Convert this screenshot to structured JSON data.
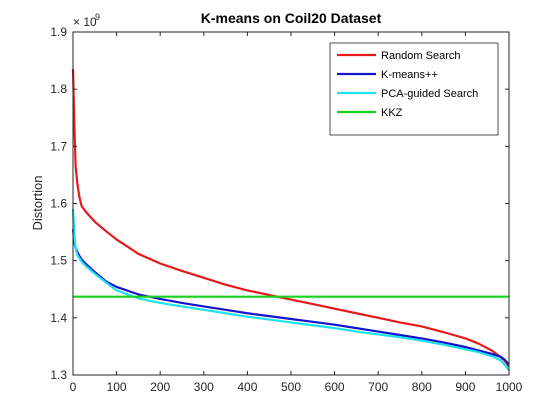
{
  "chart_data": {
    "type": "line",
    "title": "K-means on Coil20 Dataset",
    "xlabel": "",
    "ylabel": "Distortion",
    "xlim": [
      0,
      1000
    ],
    "ylim": [
      1.3,
      1.9
    ],
    "xticks": [
      "0",
      "100",
      "200",
      "300",
      "400",
      "500",
      "600",
      "700",
      "800",
      "900",
      "1000"
    ],
    "yticks": [
      "1.3",
      "1.4",
      "1.5",
      "1.6",
      "1.7",
      "1.8",
      "1.9"
    ],
    "y_exponent_base": "× 10",
    "y_exponent_power": "9",
    "grid": false,
    "legend_position": "top-right",
    "series": [
      {
        "name": "Random Search",
        "color": "#e51a1a",
        "x": [
          0,
          3,
          6,
          10,
          15,
          20,
          30,
          50,
          75,
          100,
          150,
          200,
          250,
          300,
          350,
          400,
          450,
          500,
          550,
          600,
          650,
          700,
          750,
          800,
          850,
          900,
          930,
          960,
          980,
          990,
          1000
        ],
        "y": [
          1.835,
          1.74,
          1.665,
          1.635,
          1.61,
          1.595,
          1.585,
          1.568,
          1.552,
          1.537,
          1.512,
          1.495,
          1.482,
          1.47,
          1.458,
          1.448,
          1.44,
          1.432,
          1.424,
          1.416,
          1.408,
          1.4,
          1.392,
          1.385,
          1.375,
          1.364,
          1.355,
          1.343,
          1.332,
          1.325,
          1.315
        ]
      },
      {
        "name": "K-means++",
        "color": "#1414c8",
        "x": [
          0,
          3,
          6,
          10,
          15,
          20,
          30,
          50,
          75,
          100,
          150,
          200,
          250,
          300,
          350,
          400,
          450,
          500,
          550,
          600,
          650,
          700,
          750,
          800,
          850,
          900,
          930,
          960,
          980,
          990,
          1000
        ],
        "y": [
          1.555,
          1.532,
          1.522,
          1.515,
          1.508,
          1.502,
          1.494,
          1.48,
          1.464,
          1.454,
          1.441,
          1.433,
          1.426,
          1.42,
          1.414,
          1.408,
          1.403,
          1.398,
          1.393,
          1.388,
          1.382,
          1.376,
          1.37,
          1.364,
          1.357,
          1.349,
          1.343,
          1.337,
          1.332,
          1.327,
          1.318
        ]
      },
      {
        "name": "PCA-guided Search",
        "color": "#1ee1f0",
        "x": [
          0,
          3,
          6,
          10,
          15,
          20,
          30,
          50,
          75,
          100,
          150,
          200,
          250,
          300,
          350,
          400,
          450,
          500,
          550,
          600,
          650,
          700,
          750,
          800,
          850,
          900,
          930,
          960,
          980,
          990,
          1000
        ],
        "y": [
          1.59,
          1.545,
          1.522,
          1.51,
          1.504,
          1.498,
          1.49,
          1.477,
          1.462,
          1.448,
          1.434,
          1.426,
          1.42,
          1.414,
          1.408,
          1.402,
          1.397,
          1.392,
          1.387,
          1.382,
          1.376,
          1.371,
          1.366,
          1.36,
          1.353,
          1.345,
          1.34,
          1.333,
          1.326,
          1.318,
          1.308
        ]
      },
      {
        "name": "KKZ",
        "color": "#19d21e",
        "x": [
          0,
          1000
        ],
        "y": [
          1.437,
          1.437
        ]
      }
    ]
  }
}
